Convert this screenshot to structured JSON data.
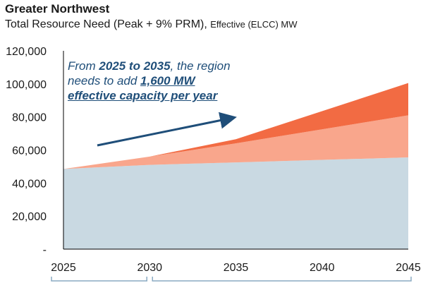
{
  "chart_data": {
    "type": "area",
    "title": "Greater Northwest",
    "subtitle_main": "Total Resource Need (Peak + 9% PRM),",
    "subtitle_small": "Effective (ELCC) MW",
    "x": [
      2025,
      2030,
      2035,
      2040,
      2045
    ],
    "ylim": [
      0,
      120000
    ],
    "y_ticks": [
      "-",
      "20,000",
      "40,000",
      "60,000",
      "80,000",
      "100,000",
      "120,000"
    ],
    "x_ticks": [
      "2025",
      "2030",
      "2035",
      "2040",
      "2045"
    ],
    "grid": false,
    "stacked": true,
    "series": [
      {
        "color": "#c9d9e2",
        "values": [
          48500,
          51000,
          52500,
          54000,
          55500
        ]
      },
      {
        "color": "#f9a68c",
        "values": [
          0,
          5000,
          11500,
          18500,
          25500
        ]
      },
      {
        "color": "#f26b43",
        "values": [
          0,
          0,
          2500,
          11000,
          19500
        ]
      }
    ],
    "annotation": {
      "part1": "From ",
      "bold1": "2025 to 2035",
      "part2": ", the region needs to add ",
      "bold2": "1,600 MW",
      "bold3": "effective capacity per year"
    }
  }
}
